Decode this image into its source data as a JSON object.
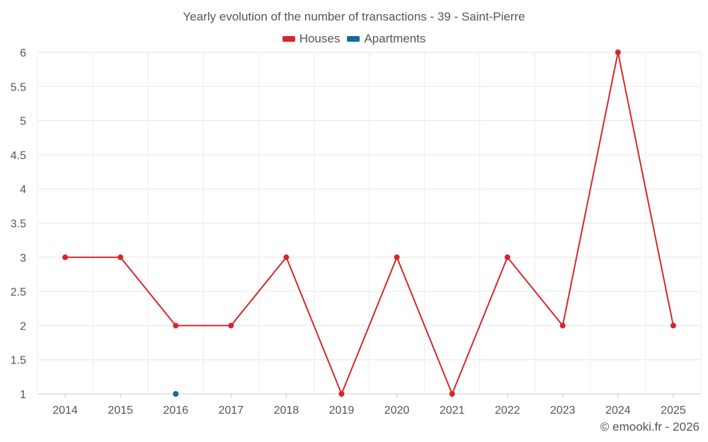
{
  "chart_data": {
    "type": "line",
    "title": "Yearly evolution of the number of transactions - 39 - Saint-Pierre",
    "xlabel": "",
    "ylabel": "",
    "categories": [
      "2014",
      "2015",
      "2016",
      "2017",
      "2018",
      "2019",
      "2020",
      "2021",
      "2022",
      "2023",
      "2024",
      "2025"
    ],
    "ylim": [
      1,
      6
    ],
    "yticks": [
      "1",
      "1.5",
      "2",
      "2.5",
      "3",
      "3.5",
      "4",
      "4.5",
      "5",
      "5.5",
      "6"
    ],
    "grid": true,
    "legend_position": "top-center",
    "series": [
      {
        "name": "Houses",
        "color": "#d7262b",
        "values": [
          3,
          3,
          2,
          2,
          3,
          1,
          3,
          1,
          3,
          2,
          6,
          2
        ]
      },
      {
        "name": "Apartments",
        "color": "#0f6ba0",
        "values": [
          null,
          null,
          1,
          null,
          null,
          null,
          null,
          null,
          null,
          null,
          null,
          null
        ]
      }
    ]
  },
  "credit": "© emooki.fr - 2026"
}
